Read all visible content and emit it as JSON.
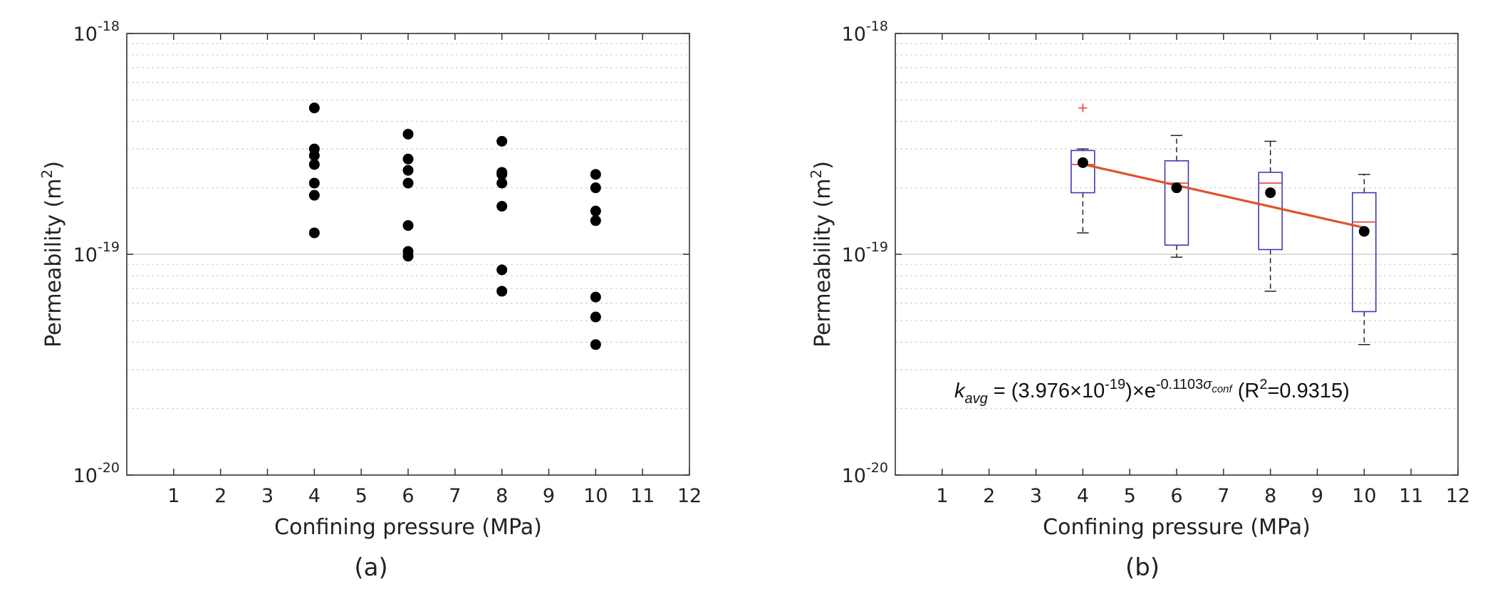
{
  "panels": [
    {
      "label": "(a)",
      "chart_data": {
        "type": "scatter",
        "xlabel": "Confining pressure (MPa)",
        "ylabel": "Permeability (m2)",
        "ylabel_base": "Permeability (m",
        "ylabel_sup": "2",
        "ylabel_tail": ")",
        "xlim": [
          0,
          12
        ],
        "ylim": [
          1e-20,
          1e-18
        ],
        "yscale": "log",
        "grid": "y",
        "xticks": [
          "1",
          "2",
          "3",
          "4",
          "5",
          "6",
          "7",
          "8",
          "9",
          "10",
          "11",
          "12"
        ],
        "yticks": [
          {
            "base": "10",
            "exp": "-20"
          },
          {
            "base": "10",
            "exp": "-19"
          },
          {
            "base": "10",
            "exp": "-18"
          }
        ],
        "series": [
          {
            "color": "#000000",
            "points": [
              [
                4,
                4.6e-19
              ],
              [
                4,
                3e-19
              ],
              [
                4,
                2.8e-19
              ],
              [
                4,
                2.55e-19
              ],
              [
                4,
                2.1e-19
              ],
              [
                4,
                1.85e-19
              ],
              [
                4,
                1.25e-19
              ],
              [
                6,
                3.5e-19
              ],
              [
                6,
                2.7e-19
              ],
              [
                6,
                2.4e-19
              ],
              [
                6,
                2.1e-19
              ],
              [
                6,
                1.35e-19
              ],
              [
                6,
                1.03e-19
              ],
              [
                6,
                9.8e-20
              ],
              [
                8,
                3.25e-19
              ],
              [
                8,
                2.35e-19
              ],
              [
                8,
                2.3e-19
              ],
              [
                8,
                2.1e-19
              ],
              [
                8,
                1.65e-19
              ],
              [
                8,
                8.5e-20
              ],
              [
                8,
                6.8e-20
              ],
              [
                10,
                2.3e-19
              ],
              [
                10,
                2e-19
              ],
              [
                10,
                1.57e-19
              ],
              [
                10,
                1.42e-19
              ],
              [
                10,
                6.4e-20
              ],
              [
                10,
                5.2e-20
              ],
              [
                10,
                3.9e-20
              ]
            ]
          }
        ]
      }
    },
    {
      "label": "(b)",
      "chart_data": {
        "type": "boxplot",
        "xlabel": "Confining pressure (MPa)",
        "ylabel": "Permeability (m2)",
        "ylabel_base": "Permeability (m",
        "ylabel_sup": "2",
        "ylabel_tail": ")",
        "xlim": [
          0,
          12
        ],
        "ylim": [
          1e-20,
          1e-18
        ],
        "yscale": "log",
        "grid": "y",
        "xticks": [
          "1",
          "2",
          "3",
          "4",
          "5",
          "6",
          "7",
          "8",
          "9",
          "10",
          "11",
          "12"
        ],
        "yticks": [
          {
            "base": "10",
            "exp": "-20"
          },
          {
            "base": "10",
            "exp": "-19"
          },
          {
            "base": "10",
            "exp": "-18"
          }
        ],
        "colors": {
          "box": "#3b3bb5",
          "median": "#e04040",
          "whisker": "#222222",
          "outlier": "#e04040",
          "mean": "#000000",
          "fit": "#e0522a"
        },
        "boxes": [
          {
            "x": 4,
            "q1": 1.9e-19,
            "median": 2.55e-19,
            "q3": 2.95e-19,
            "whisker_low": 1.25e-19,
            "whisker_high": 3e-19,
            "mean": 2.6e-19,
            "outliers": [
              4.6e-19
            ]
          },
          {
            "x": 6,
            "q1": 1.1e-19,
            "median": 2.1e-19,
            "q3": 2.65e-19,
            "whisker_low": 9.7e-20,
            "whisker_high": 3.45e-19,
            "mean": 2e-19,
            "outliers": []
          },
          {
            "x": 8,
            "q1": 1.05e-19,
            "median": 2.1e-19,
            "q3": 2.35e-19,
            "whisker_low": 6.8e-20,
            "whisker_high": 3.25e-19,
            "mean": 1.9e-19,
            "outliers": []
          },
          {
            "x": 10,
            "q1": 5.5e-20,
            "median": 1.4e-19,
            "q3": 1.9e-19,
            "whisker_low": 3.9e-20,
            "whisker_high": 2.3e-19,
            "mean": 1.27e-19,
            "outliers": []
          }
        ],
        "fit": {
          "coefficient": 3.976e-19,
          "rate": -0.1103,
          "x_range": [
            4,
            10
          ],
          "equation": {
            "k": "k",
            "k_sub": "avg",
            "eq_mid": " = (3.976",
            "times": "×",
            "ten": "10",
            "ten_exp": "-19",
            "close": ")",
            "e": "e",
            "e_exp": "-0.1103",
            "sigma": "σ",
            "sigma_sub": "conf",
            "r2_open": " (R",
            "r2_sup": "2",
            "r2_val": "=0.9315)"
          }
        }
      }
    }
  ]
}
